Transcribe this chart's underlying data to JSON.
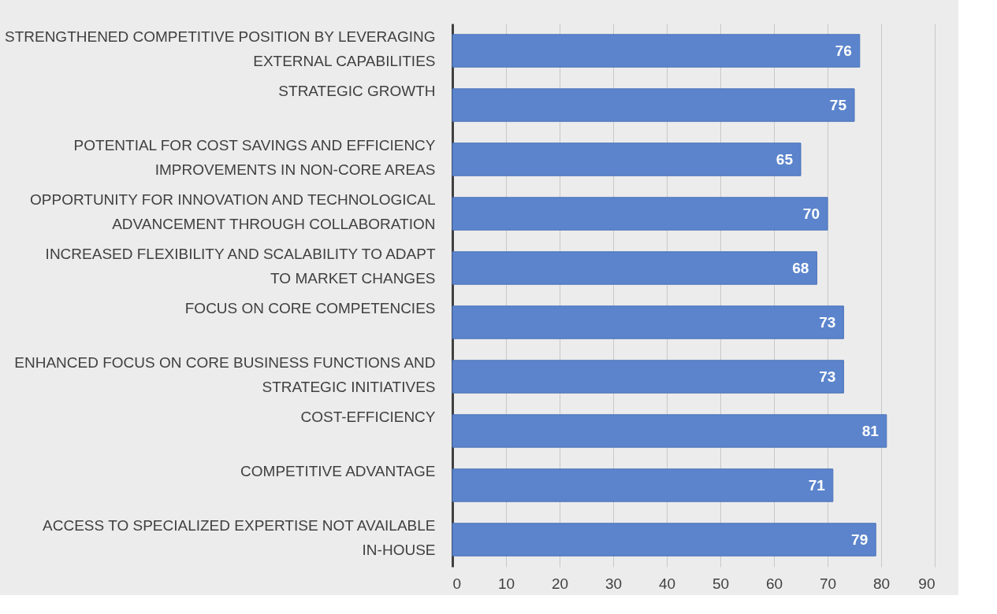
{
  "chart_data": {
    "type": "bar",
    "orientation": "horizontal",
    "categories": [
      "STRENGTHENED COMPETITIVE POSITION BY LEVERAGING EXTERNAL CAPABILITIES",
      "STRATEGIC GROWTH",
      "POTENTIAL FOR COST SAVINGS AND EFFICIENCY IMPROVEMENTS IN NON-CORE AREAS",
      "OPPORTUNITY FOR INNOVATION AND TECHNOLOGICAL ADVANCEMENT THROUGH COLLABORATION",
      "INCREASED FLEXIBILITY AND SCALABILITY TO ADAPT TO MARKET CHANGES",
      "FOCUS ON CORE COMPETENCIES",
      "ENHANCED FOCUS ON CORE BUSINESS FUNCTIONS AND STRATEGIC INITIATIVES",
      "COST-EFFICIENCY",
      "COMPETITIVE ADVANTAGE",
      "ACCESS TO SPECIALIZED EXPERTISE NOT AVAILABLE IN-HOUSE"
    ],
    "values": [
      76,
      75,
      65,
      70,
      68,
      73,
      73,
      81,
      71,
      79
    ],
    "color": "#5b84cc",
    "xlim": [
      0,
      90
    ],
    "xticks": [
      0,
      10,
      20,
      30,
      40,
      50,
      60,
      70,
      80,
      90
    ],
    "grid": "x",
    "data_labels": true
  }
}
